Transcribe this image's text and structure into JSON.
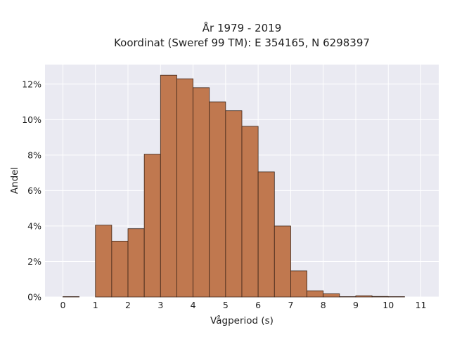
{
  "chart_data": {
    "type": "bar",
    "title": "År 1979 - 2019",
    "subtitle": "Koordinat (Sweref 99 TM): E 354165, N 6298397",
    "xlabel": "Vågperiod (s)",
    "ylabel": "Andel",
    "bin_width": 0.5,
    "bins": [
      {
        "start": 0.0,
        "value": 0.02
      },
      {
        "start": 0.5,
        "value": 0.0
      },
      {
        "start": 1.0,
        "value": 4.05
      },
      {
        "start": 1.5,
        "value": 3.15
      },
      {
        "start": 2.0,
        "value": 3.85
      },
      {
        "start": 2.5,
        "value": 8.05
      },
      {
        "start": 3.0,
        "value": 12.5
      },
      {
        "start": 3.5,
        "value": 12.3
      },
      {
        "start": 4.0,
        "value": 11.8
      },
      {
        "start": 4.5,
        "value": 11.0
      },
      {
        "start": 5.0,
        "value": 10.5
      },
      {
        "start": 5.5,
        "value": 9.62
      },
      {
        "start": 6.0,
        "value": 7.05
      },
      {
        "start": 6.5,
        "value": 4.0
      },
      {
        "start": 7.0,
        "value": 1.47
      },
      {
        "start": 7.5,
        "value": 0.35
      },
      {
        "start": 8.0,
        "value": 0.18
      },
      {
        "start": 8.5,
        "value": 0.02
      },
      {
        "start": 9.0,
        "value": 0.07
      },
      {
        "start": 9.5,
        "value": 0.03
      },
      {
        "start": 10.0,
        "value": 0.02
      }
    ],
    "xlim": [
      -0.55,
      11.55
    ],
    "ylim": [
      0,
      13.1
    ],
    "xticks": [
      0,
      1,
      2,
      3,
      4,
      5,
      6,
      7,
      8,
      9,
      10,
      11
    ],
    "yticks": [
      0,
      2,
      4,
      6,
      8,
      10,
      12
    ],
    "ytick_suffix": "%",
    "grid": true,
    "colors": {
      "background": "#ffffff",
      "plot_background": "#eaeaf2",
      "grid": "#ffffff",
      "bar_fill": "#c0784f",
      "bar_edge": "#3b2418",
      "text": "#222222"
    }
  }
}
